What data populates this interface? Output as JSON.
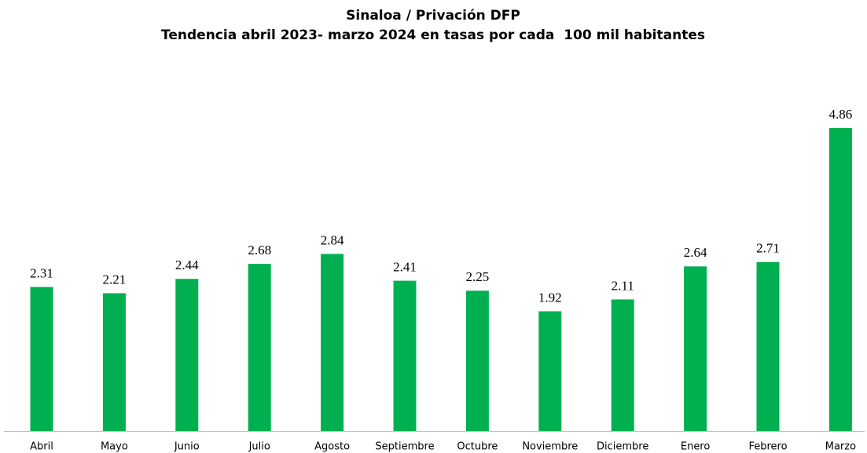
{
  "chart_data": {
    "type": "bar",
    "title": "Sinaloa / Privación DFP",
    "subtitle": "Tendencia abril 2023- marzo 2024 en tasas por cada  100 mil habitantes",
    "categories": [
      "Abril",
      "Mayo",
      "Junio",
      "Julio",
      "Agosto",
      "Septiembre",
      "Octubre",
      "Noviembre",
      "Diciembre",
      "Enero",
      "Febrero",
      "Marzo"
    ],
    "values": [
      2.31,
      2.21,
      2.44,
      2.68,
      2.84,
      2.41,
      2.25,
      1.92,
      2.11,
      2.64,
      2.71,
      4.86
    ],
    "color": "#00b050"
  }
}
